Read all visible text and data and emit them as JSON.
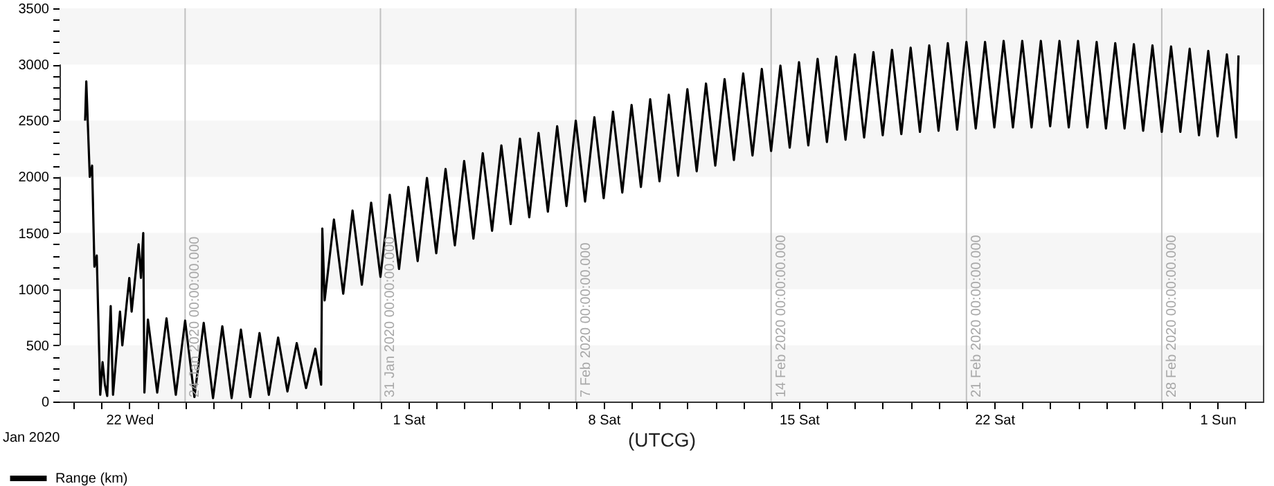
{
  "chart_data": {
    "type": "line",
    "xlabel": "(UTCG)",
    "annotations": [
      "Jan 2020"
    ],
    "xlim": [
      "2020-01-19T12:00",
      "2020-03-02T15:00"
    ],
    "ylim": [
      0,
      3500
    ],
    "xticks": [
      {
        "value": "2020-01-20",
        "label": null
      },
      {
        "value": "2020-01-21",
        "label": null
      },
      {
        "value": "2020-01-22",
        "label": "22 Wed"
      },
      {
        "value": "2020-01-23",
        "label": null
      },
      {
        "value": "2020-01-24",
        "label": null
      },
      {
        "value": "2020-01-25",
        "label": null
      },
      {
        "value": "2020-01-26",
        "label": null
      },
      {
        "value": "2020-01-27",
        "label": null
      },
      {
        "value": "2020-01-28",
        "label": null
      },
      {
        "value": "2020-01-29",
        "label": null
      },
      {
        "value": "2020-01-30",
        "label": null
      },
      {
        "value": "2020-01-31",
        "label": null
      },
      {
        "value": "2020-02-01",
        "label": "1 Sat"
      },
      {
        "value": "2020-02-02",
        "label": null
      },
      {
        "value": "2020-02-03",
        "label": null
      },
      {
        "value": "2020-02-04",
        "label": null
      },
      {
        "value": "2020-02-05",
        "label": null
      },
      {
        "value": "2020-02-06",
        "label": null
      },
      {
        "value": "2020-02-07",
        "label": null
      },
      {
        "value": "2020-02-08",
        "label": "8 Sat"
      },
      {
        "value": "2020-02-09",
        "label": null
      },
      {
        "value": "2020-02-10",
        "label": null
      },
      {
        "value": "2020-02-11",
        "label": null
      },
      {
        "value": "2020-02-12",
        "label": null
      },
      {
        "value": "2020-02-13",
        "label": null
      },
      {
        "value": "2020-02-14",
        "label": null
      },
      {
        "value": "2020-02-15",
        "label": "15 Sat"
      },
      {
        "value": "2020-02-16",
        "label": null
      },
      {
        "value": "2020-02-17",
        "label": null
      },
      {
        "value": "2020-02-18",
        "label": null
      },
      {
        "value": "2020-02-19",
        "label": null
      },
      {
        "value": "2020-02-20",
        "label": null
      },
      {
        "value": "2020-02-21",
        "label": null
      },
      {
        "value": "2020-02-22",
        "label": "22 Sat"
      },
      {
        "value": "2020-02-23",
        "label": null
      },
      {
        "value": "2020-02-24",
        "label": null
      },
      {
        "value": "2020-02-25",
        "label": null
      },
      {
        "value": "2020-02-26",
        "label": null
      },
      {
        "value": "2020-02-27",
        "label": null
      },
      {
        "value": "2020-02-28",
        "label": null
      },
      {
        "value": "2020-02-29",
        "label": null
      },
      {
        "value": "2020-03-01",
        "label": "1 Sun"
      },
      {
        "value": "2020-03-02",
        "label": null
      }
    ],
    "yticks": [
      0,
      {
        "value": 100,
        "label": null
      },
      {
        "value": 200,
        "label": null
      },
      {
        "value": 300,
        "label": null
      },
      {
        "value": 400,
        "label": null
      },
      500,
      {
        "value": 600,
        "label": null
      },
      {
        "value": 700,
        "label": null
      },
      {
        "value": 800,
        "label": null
      },
      {
        "value": 900,
        "label": null
      },
      1000,
      {
        "value": 1100,
        "label": null
      },
      {
        "value": 1200,
        "label": null
      },
      {
        "value": 1300,
        "label": null
      },
      {
        "value": 1400,
        "label": null
      },
      1500,
      {
        "value": 1600,
        "label": null
      },
      {
        "value": 1700,
        "label": null
      },
      {
        "value": 1800,
        "label": null
      },
      {
        "value": 1900,
        "label": null
      },
      2000,
      {
        "value": 2100,
        "label": null
      },
      {
        "value": 2200,
        "label": null
      },
      {
        "value": 2300,
        "label": null
      },
      {
        "value": 2400,
        "label": null
      },
      2500,
      {
        "value": 2600,
        "label": null
      },
      {
        "value": 2700,
        "label": null
      },
      {
        "value": 2800,
        "label": null
      },
      {
        "value": 2900,
        "label": null
      },
      3000,
      {
        "value": 3100,
        "label": null
      },
      {
        "value": 3200,
        "label": null
      },
      {
        "value": 3300,
        "label": null
      },
      {
        "value": 3400,
        "label": null
      },
      3500
    ],
    "legend": "bottom left",
    "bands": [
      {
        "axis": "y",
        "from": 0,
        "to": 500,
        "color": "#f6f6f6"
      },
      {
        "axis": "y",
        "from": 1000,
        "to": 1500,
        "color": "#f6f6f6"
      },
      {
        "axis": "y",
        "from": 2000,
        "to": 2500,
        "color": "#f6f6f6"
      },
      {
        "axis": "y",
        "from": 3000,
        "to": 3500,
        "color": "#f6f6f6"
      }
    ],
    "ref_lines": [
      {
        "axis": "x",
        "value": "2020-01-24",
        "label": "24 Jan 2020 00:00:00.000",
        "color": "#c0c0c0"
      },
      {
        "axis": "x",
        "value": "2020-01-31",
        "label": "31 Jan 2020 00:00:00.000",
        "color": "#c0c0c0"
      },
      {
        "axis": "x",
        "value": "2020-02-07",
        "label": "7 Feb 2020 00:00:00.000",
        "color": "#c0c0c0"
      },
      {
        "axis": "x",
        "value": "2020-02-14",
        "label": "14 Feb 2020 00:00:00.000",
        "color": "#c0c0c0"
      },
      {
        "axis": "x",
        "value": "2020-02-21",
        "label": "21 Feb 2020 00:00:00.000",
        "color": "#c0c0c0"
      },
      {
        "axis": "x",
        "value": "2020-02-28",
        "label": "28 Feb 2020 00:00:00.000",
        "color": "#c0c0c0"
      }
    ],
    "x": [
      "2020-01-20T10:00",
      "2020-01-20T11:00",
      "2020-01-20T14:00",
      "2020-01-20T16:00",
      "2020-01-20T18:00",
      "2020-01-20T20:00",
      "2020-01-20T23:00",
      "2020-01-21T01:00",
      "2020-01-21T03:00",
      "2020-01-21T05:00",
      "2020-01-21T08:00",
      "2020-01-21T10:00",
      "2020-01-21T16:00",
      "2020-01-21T18:00",
      "2020-01-22T00:00",
      "2020-01-22T02:00",
      "2020-01-22T08:00",
      "2020-01-22T10:00",
      "2020-01-22T12:00",
      "2020-01-22T13:00",
      "2020-01-22T16:00",
      "2020-01-23T00:00",
      "2020-01-23T08:00",
      "2020-01-23T16:00",
      "2020-01-24T00:00",
      "2020-01-24T08:00",
      "2020-01-24T16:00",
      "2020-01-25T00:00",
      "2020-01-25T08:00",
      "2020-01-25T16:00",
      "2020-01-26T00:00",
      "2020-01-26T08:00",
      "2020-01-26T16:00",
      "2020-01-27T00:00",
      "2020-01-27T08:00",
      "2020-01-27T16:00",
      "2020-01-28T00:00",
      "2020-01-28T08:00",
      "2020-01-28T16:00",
      "2020-01-28T21:00",
      "2020-01-28T22:00",
      "2020-01-29T00:00",
      "2020-01-29T08:00",
      "2020-01-29T16:00",
      "2020-01-30T00:00",
      "2020-01-30T08:00",
      "2020-01-30T16:00",
      "2020-01-31T00:00",
      "2020-01-31T08:00",
      "2020-01-31T16:00",
      "2020-02-01T00:00",
      "2020-02-01T08:00",
      "2020-02-01T16:00",
      "2020-02-02T00:00",
      "2020-02-02T08:00",
      "2020-02-02T16:00",
      "2020-02-03T00:00",
      "2020-02-03T08:00",
      "2020-02-03T16:00",
      "2020-02-04T00:00",
      "2020-02-04T08:00",
      "2020-02-04T16:00",
      "2020-02-05T00:00",
      "2020-02-05T08:00",
      "2020-02-05T16:00",
      "2020-02-06T00:00",
      "2020-02-06T08:00",
      "2020-02-06T16:00",
      "2020-02-07T00:00",
      "2020-02-07T08:00",
      "2020-02-07T16:00",
      "2020-02-08T00:00",
      "2020-02-08T08:00",
      "2020-02-08T16:00",
      "2020-02-09T00:00",
      "2020-02-09T08:00",
      "2020-02-09T16:00",
      "2020-02-10T00:00",
      "2020-02-10T08:00",
      "2020-02-10T16:00",
      "2020-02-11T00:00",
      "2020-02-11T08:00",
      "2020-02-11T16:00",
      "2020-02-12T00:00",
      "2020-02-12T08:00",
      "2020-02-12T16:00",
      "2020-02-13T00:00",
      "2020-02-13T08:00",
      "2020-02-13T16:00",
      "2020-02-14T00:00",
      "2020-02-14T08:00",
      "2020-02-14T16:00",
      "2020-02-15T00:00",
      "2020-02-15T08:00",
      "2020-02-15T16:00",
      "2020-02-16T00:00",
      "2020-02-16T08:00",
      "2020-02-16T16:00",
      "2020-02-17T00:00",
      "2020-02-17T08:00",
      "2020-02-17T16:00",
      "2020-02-18T00:00",
      "2020-02-18T08:00",
      "2020-02-18T16:00",
      "2020-02-19T00:00",
      "2020-02-19T08:00",
      "2020-02-19T16:00",
      "2020-02-20T00:00",
      "2020-02-20T08:00",
      "2020-02-20T16:00",
      "2020-02-21T00:00",
      "2020-02-21T08:00",
      "2020-02-21T16:00",
      "2020-02-22T00:00",
      "2020-02-22T08:00",
      "2020-02-22T16:00",
      "2020-02-23T00:00",
      "2020-02-23T08:00",
      "2020-02-23T16:00",
      "2020-02-24T00:00",
      "2020-02-24T08:00",
      "2020-02-24T16:00",
      "2020-02-25T00:00",
      "2020-02-25T08:00",
      "2020-02-25T16:00",
      "2020-02-26T00:00",
      "2020-02-26T08:00",
      "2020-02-26T16:00",
      "2020-02-27T00:00",
      "2020-02-27T08:00",
      "2020-02-27T16:00",
      "2020-02-28T00:00",
      "2020-02-28T08:00",
      "2020-02-28T16:00",
      "2020-02-29T00:00",
      "2020-02-29T08:00",
      "2020-02-29T16:00",
      "2020-03-01T00:00",
      "2020-03-01T08:00",
      "2020-03-01T16:00",
      "2020-03-01T18:00"
    ],
    "series": [
      {
        "name": "Range (km)",
        "color": "#000000",
        "values": [
          2500,
          2850,
          2000,
          2100,
          1200,
          1300,
          60,
          350,
          150,
          50,
          850,
          60,
          800,
          500,
          1100,
          800,
          1400,
          1100,
          1500,
          80,
          730,
          80,
          740,
          60,
          720,
          40,
          700,
          30,
          670,
          30,
          640,
          40,
          610,
          60,
          570,
          90,
          520,
          120,
          470,
          150,
          1540,
          900,
          1620,
          960,
          1700,
          1040,
          1770,
          1110,
          1840,
          1180,
          1910,
          1250,
          1990,
          1320,
          2070,
          1390,
          2140,
          1450,
          2210,
          1520,
          2280,
          1580,
          2340,
          1640,
          2390,
          1690,
          2450,
          1740,
          2500,
          1780,
          2530,
          1810,
          2580,
          1860,
          2640,
          1910,
          2690,
          1960,
          2730,
          2010,
          2780,
          2050,
          2830,
          2100,
          2870,
          2150,
          2920,
          2190,
          2960,
          2230,
          2990,
          2260,
          3020,
          2280,
          3050,
          2310,
          3070,
          2330,
          3090,
          2350,
          3110,
          2370,
          3130,
          2380,
          3150,
          2400,
          3170,
          2410,
          3190,
          2420,
          3200,
          2430,
          3200,
          2440,
          3210,
          2440,
          3210,
          2440,
          3210,
          2450,
          3210,
          2440,
          3210,
          2440,
          3200,
          2430,
          3190,
          2430,
          3180,
          2410,
          3170,
          2400,
          3160,
          2400,
          3140,
          2370,
          3120,
          2360,
          3090,
          2350,
          3080
        ]
      }
    ]
  }
}
